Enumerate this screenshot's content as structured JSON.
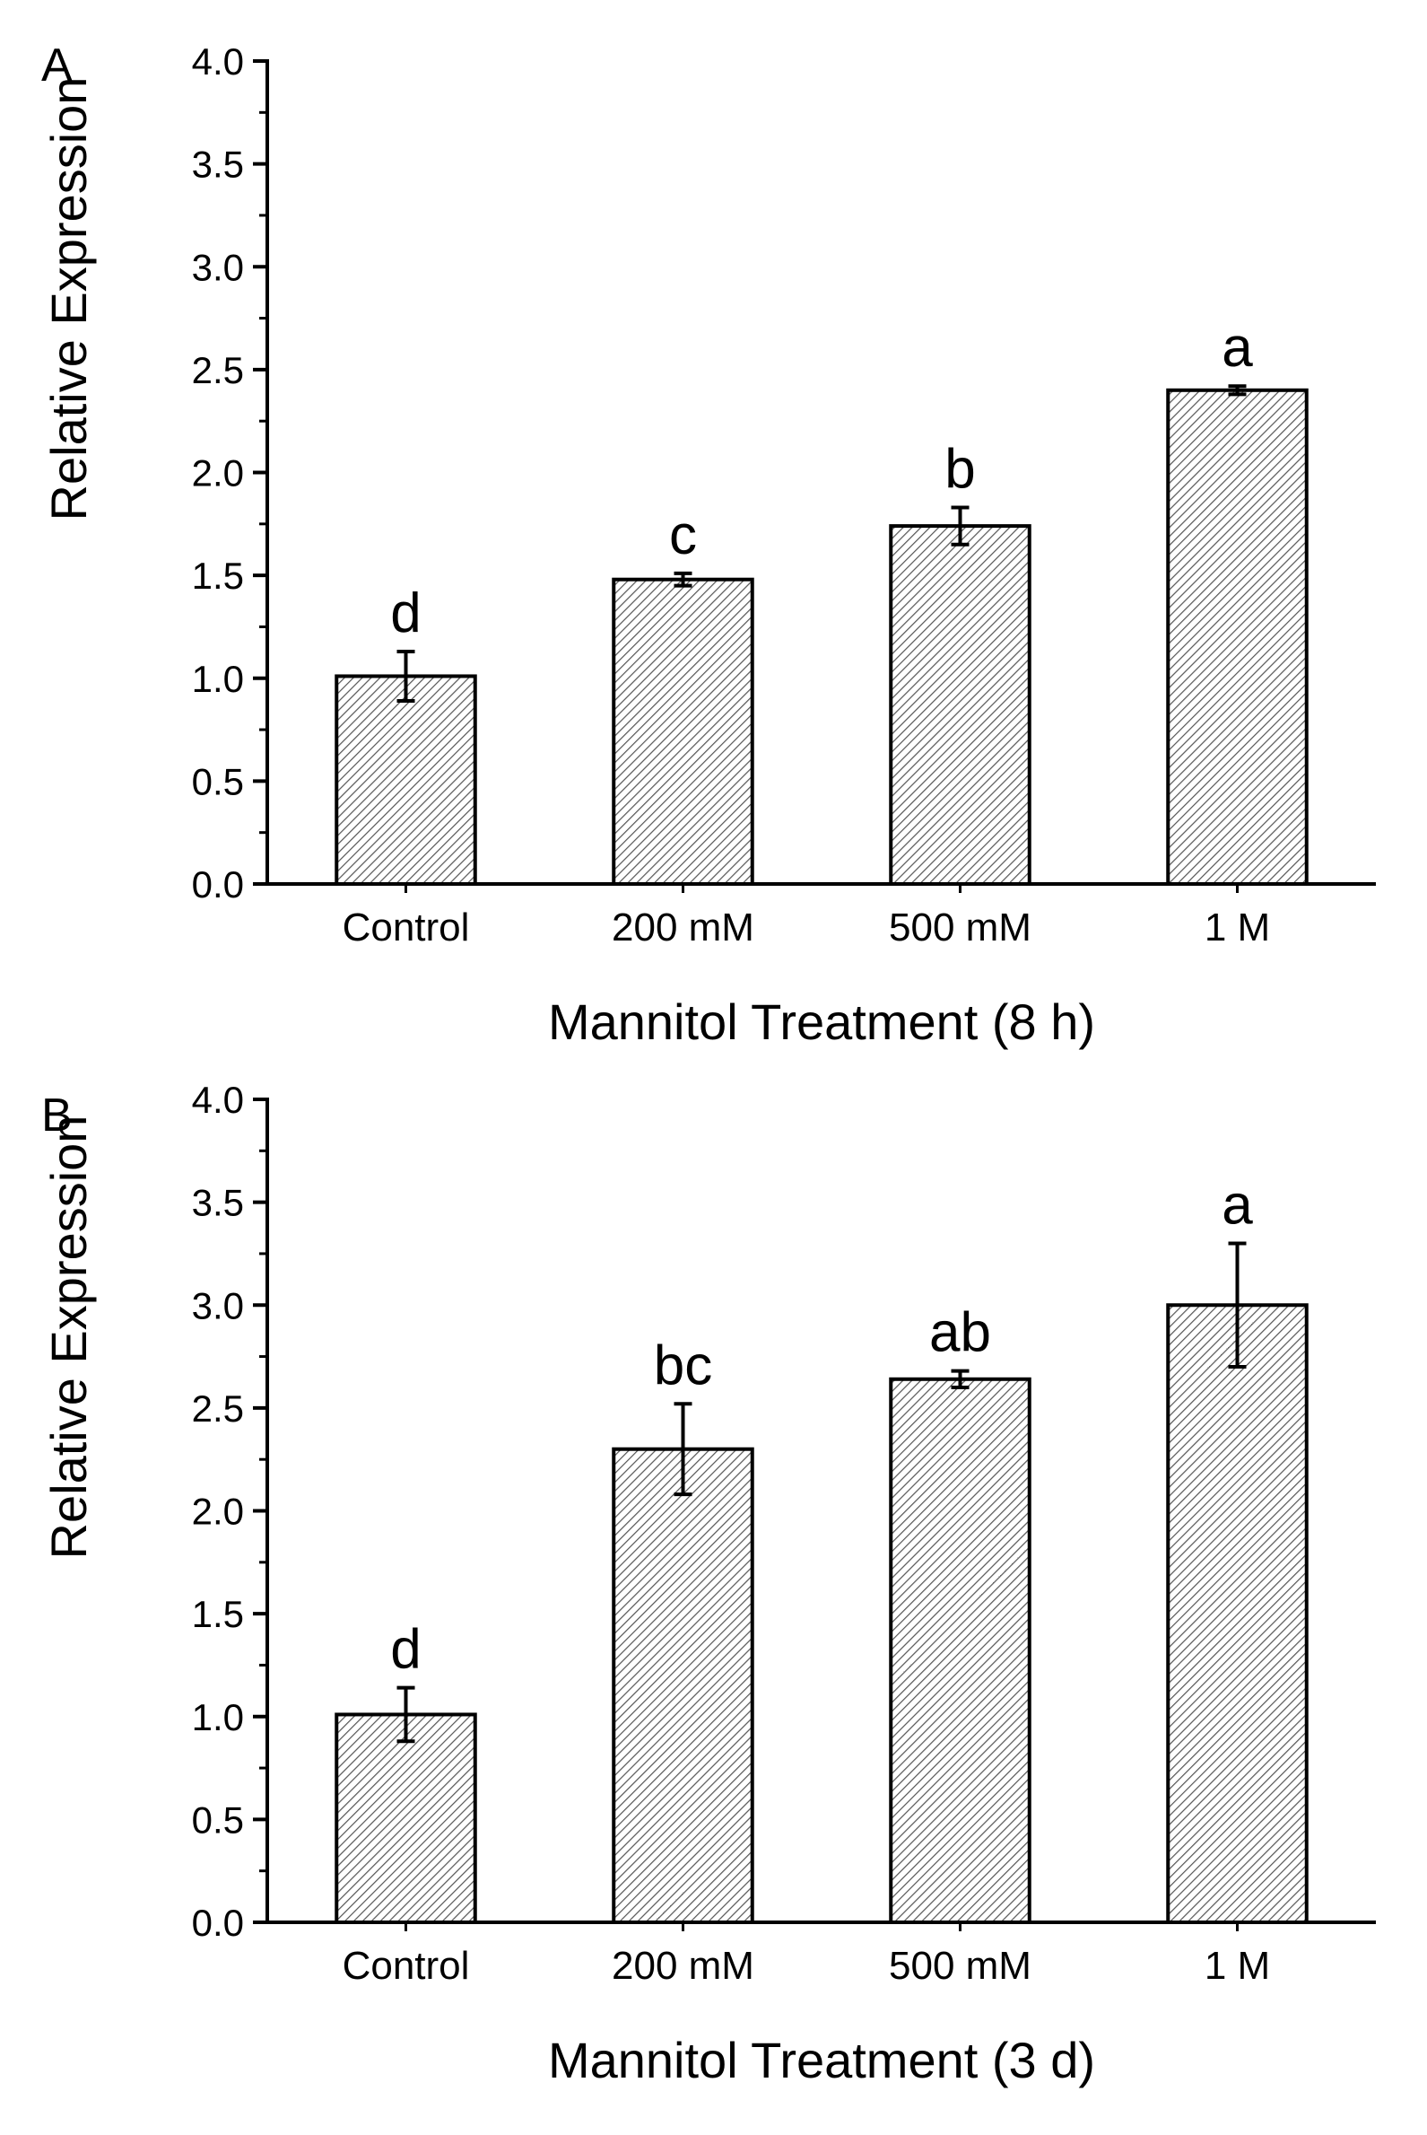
{
  "chart_data": [
    {
      "panel_label": "A",
      "type": "bar",
      "categories": [
        "Control",
        "200 mM",
        "500 mM",
        "1 M"
      ],
      "values": [
        1.01,
        1.48,
        1.74,
        2.4
      ],
      "errors": [
        0.12,
        0.03,
        0.09,
        0.02
      ],
      "significance_letters": [
        "d",
        "c",
        "b",
        "a"
      ],
      "title": "",
      "xlabel": "Mannitol Treatment (8 h)",
      "ylabel": "Relative Expression",
      "ylim": [
        0,
        4.0
      ],
      "yticks": [
        "0.0",
        "0.5",
        "1.0",
        "1.5",
        "2.0",
        "2.5",
        "3.0",
        "3.5",
        "4.0"
      ],
      "grid": false,
      "bar_fill": "hatched",
      "colors": {
        "bar_fill": "#ffffff",
        "hatch": "#555555",
        "stroke": "#000000"
      }
    },
    {
      "panel_label": "B",
      "type": "bar",
      "categories": [
        "Control",
        "200 mM",
        "500 mM",
        "1 M"
      ],
      "values": [
        1.01,
        2.3,
        2.64,
        3.0
      ],
      "errors": [
        0.13,
        0.22,
        0.04,
        0.3
      ],
      "significance_letters": [
        "d",
        "bc",
        "ab",
        "a"
      ],
      "title": "",
      "xlabel": "Mannitol Treatment (3 d)",
      "ylabel": "Relative Expression",
      "ylim": [
        0,
        4.0
      ],
      "yticks": [
        "0.0",
        "0.5",
        "1.0",
        "1.5",
        "2.0",
        "2.5",
        "3.0",
        "3.5",
        "4.0"
      ],
      "grid": false,
      "bar_fill": "hatched",
      "colors": {
        "bar_fill": "#ffffff",
        "hatch": "#555555",
        "stroke": "#000000"
      }
    }
  ]
}
